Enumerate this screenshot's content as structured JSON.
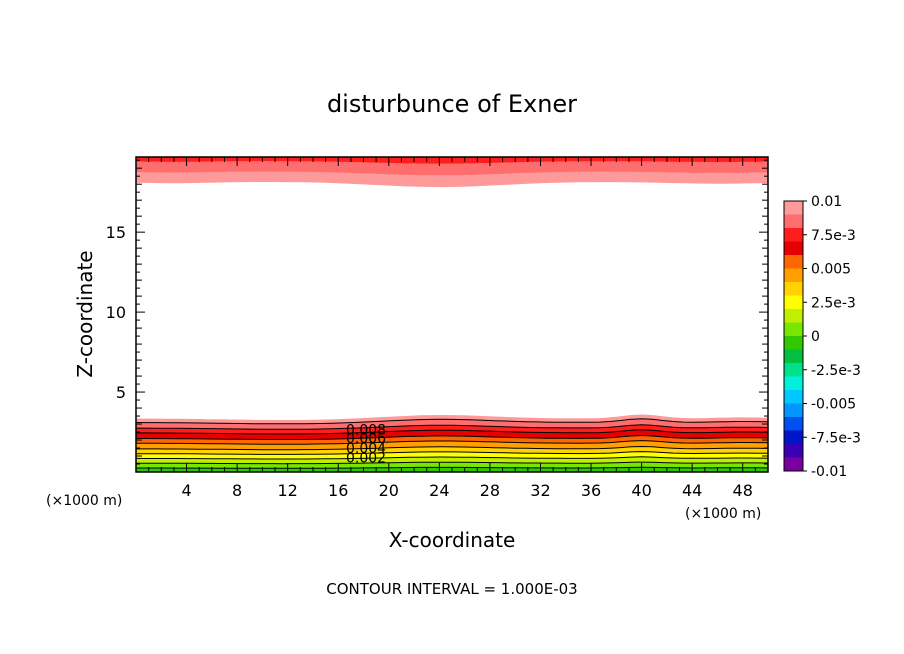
{
  "chart_data": {
    "type": "heatmap",
    "title": "disturbunce of Exner",
    "xlabel": "X-coordinate",
    "ylabel": "Z-coordinate",
    "x_unit_left": "(×1000 m)",
    "x_unit_right": "(×1000 m)",
    "footer": "CONTOUR INTERVAL = 1.000E-03",
    "xlim": [
      0,
      50
    ],
    "ylim": [
      0,
      19.7
    ],
    "x_ticks": [
      4,
      8,
      12,
      16,
      20,
      24,
      28,
      32,
      36,
      40,
      44,
      48
    ],
    "y_ticks": [
      5,
      10,
      15
    ],
    "colorbar": {
      "range": [
        -0.01,
        0.01
      ],
      "tick_labels": [
        "0.01",
        "7.5e-3",
        "0.005",
        "2.5e-3",
        "0",
        "-2.5e-3",
        "-0.005",
        "-7.5e-3",
        "-0.01"
      ],
      "tick_values": [
        0.01,
        0.0075,
        0.005,
        0.0025,
        0,
        -0.0025,
        -0.005,
        -0.0075,
        -0.01
      ],
      "colors": [
        "#ff9a9a",
        "#ff6e6e",
        "#ff1e1e",
        "#e60000",
        "#ff6600",
        "#ffa000",
        "#ffd200",
        "#ffff00",
        "#c0f000",
        "#78e600",
        "#32c800",
        "#00c040",
        "#00e08c",
        "#00f0dc",
        "#00c8ff",
        "#0096ff",
        "#0050f0",
        "#0014c8",
        "#3c00b4",
        "#7800a0"
      ]
    },
    "contour_labels": [
      "0.008",
      "0.006",
      "0.004",
      "0.002"
    ],
    "grid": false,
    "legend": "right"
  }
}
